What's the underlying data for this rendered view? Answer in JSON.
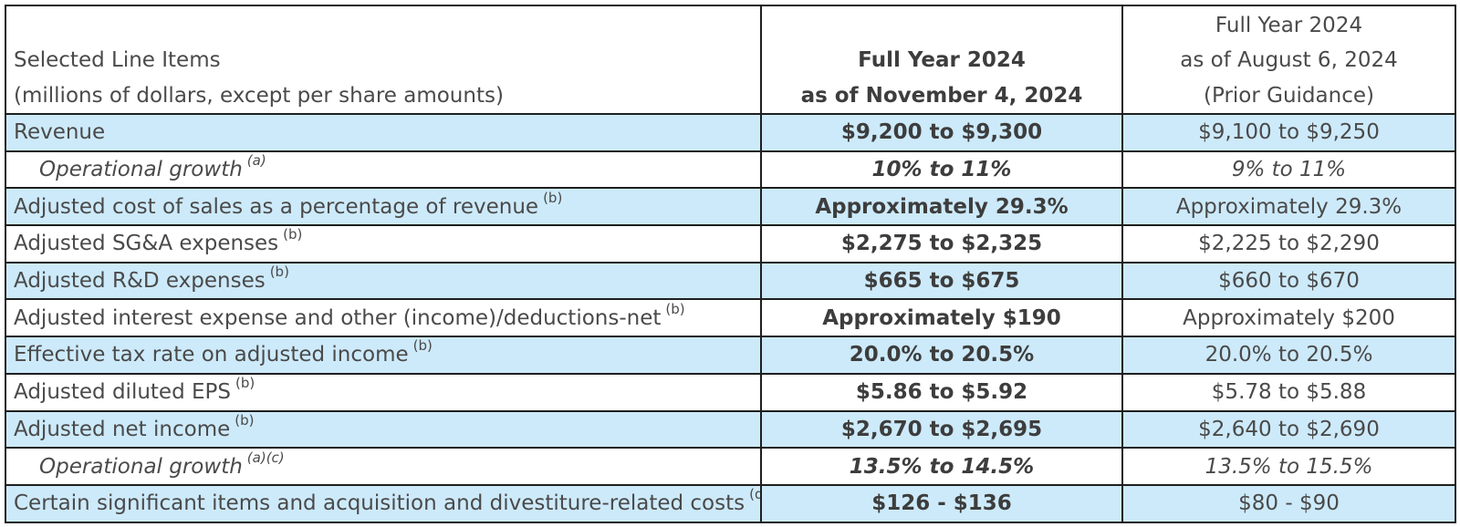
{
  "header": {
    "label_line1": "Selected Line Items",
    "label_line2": "(millions of dollars, except per share amounts)",
    "current_line1": "Full Year 2024",
    "current_line2": "as of November 4, 2024",
    "prior_line1": "Full Year 2024",
    "prior_line2": "as of August 6, 2024",
    "prior_line3": "(Prior Guidance)"
  },
  "rows": [
    {
      "label": "Revenue",
      "note": "",
      "current": "$9,200 to $9,300",
      "prior": "$9,100 to $9,250"
    },
    {
      "label": "Operational growth",
      "note": "(a)",
      "current": "10% to 11%",
      "prior": "9% to 11%"
    },
    {
      "label": "Adjusted cost of sales as a percentage of revenue",
      "note": "(b)",
      "current": "Approximately 29.3%",
      "prior": "Approximately 29.3%"
    },
    {
      "label": "Adjusted SG&A expenses",
      "note": "(b)",
      "current": "$2,275 to $2,325",
      "prior": "$2,225 to $2,290"
    },
    {
      "label": "Adjusted R&D expenses",
      "note": "(b)",
      "current": "$665 to $675",
      "prior": "$660 to $670"
    },
    {
      "label": "Adjusted interest expense and other (income)/deductions-net",
      "note": "(b)",
      "current": "Approximately $190",
      "prior": "Approximately $200"
    },
    {
      "label": "Effective tax rate on adjusted income",
      "note": "(b)",
      "current": "20.0% to 20.5%",
      "prior": "20.0% to 20.5%"
    },
    {
      "label": "Adjusted diluted EPS",
      "note": "(b)",
      "current": "$5.86 to $5.92",
      "prior": "$5.78 to $5.88"
    },
    {
      "label": "Adjusted net income",
      "note": "(b)",
      "current": "$2,670 to $2,695",
      "prior": "$2,640 to $2,690"
    },
    {
      "label": "Operational growth",
      "note": "(a)(c)",
      "current": "13.5% to 14.5%",
      "prior": "13.5% to 15.5%"
    },
    {
      "label": "Certain significant items and acquisition and divestiture-related costs",
      "note": "(d)",
      "current": "$126 - $136",
      "prior": "$80 - $90"
    }
  ],
  "colors": {
    "shaded_row": "#cdeafa",
    "border": "#1f1f1f",
    "text": "#4a4a4a"
  }
}
